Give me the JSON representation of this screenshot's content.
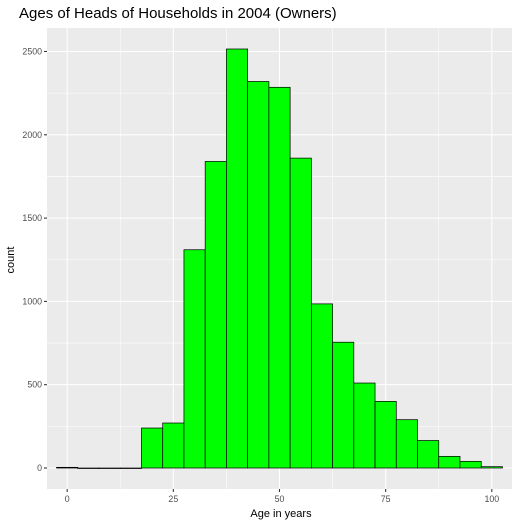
{
  "chart_data": {
    "type": "bar",
    "title": "Ages of Heads of Households in 2004 (Owners)",
    "xlabel": "Age in years",
    "ylabel": "count",
    "bin_width": 5,
    "bins": [
      {
        "center": 0,
        "count": 4
      },
      {
        "center": 5,
        "count": 0
      },
      {
        "center": 10,
        "count": 0
      },
      {
        "center": 15,
        "count": 0
      },
      {
        "center": 20,
        "count": 240
      },
      {
        "center": 25,
        "count": 270
      },
      {
        "center": 30,
        "count": 1310
      },
      {
        "center": 35,
        "count": 1840
      },
      {
        "center": 40,
        "count": 2515
      },
      {
        "center": 45,
        "count": 2320
      },
      {
        "center": 50,
        "count": 2285
      },
      {
        "center": 55,
        "count": 1860
      },
      {
        "center": 60,
        "count": 985
      },
      {
        "center": 65,
        "count": 755
      },
      {
        "center": 70,
        "count": 510
      },
      {
        "center": 75,
        "count": 400
      },
      {
        "center": 80,
        "count": 290
      },
      {
        "center": 85,
        "count": 165
      },
      {
        "center": 90,
        "count": 70
      },
      {
        "center": 95,
        "count": 40
      },
      {
        "center": 100,
        "count": 8
      }
    ],
    "xlim": [
      -4.75,
      104.75
    ],
    "ylim": [
      -126,
      2641
    ],
    "xticks": [
      0,
      25,
      50,
      75,
      100
    ],
    "yticks": [
      0,
      500,
      1000,
      1500,
      2000,
      2500
    ],
    "bar_fill": "#00ff00",
    "bar_outline": "#000000",
    "panel_background": "#ebebeb",
    "grid": true
  }
}
